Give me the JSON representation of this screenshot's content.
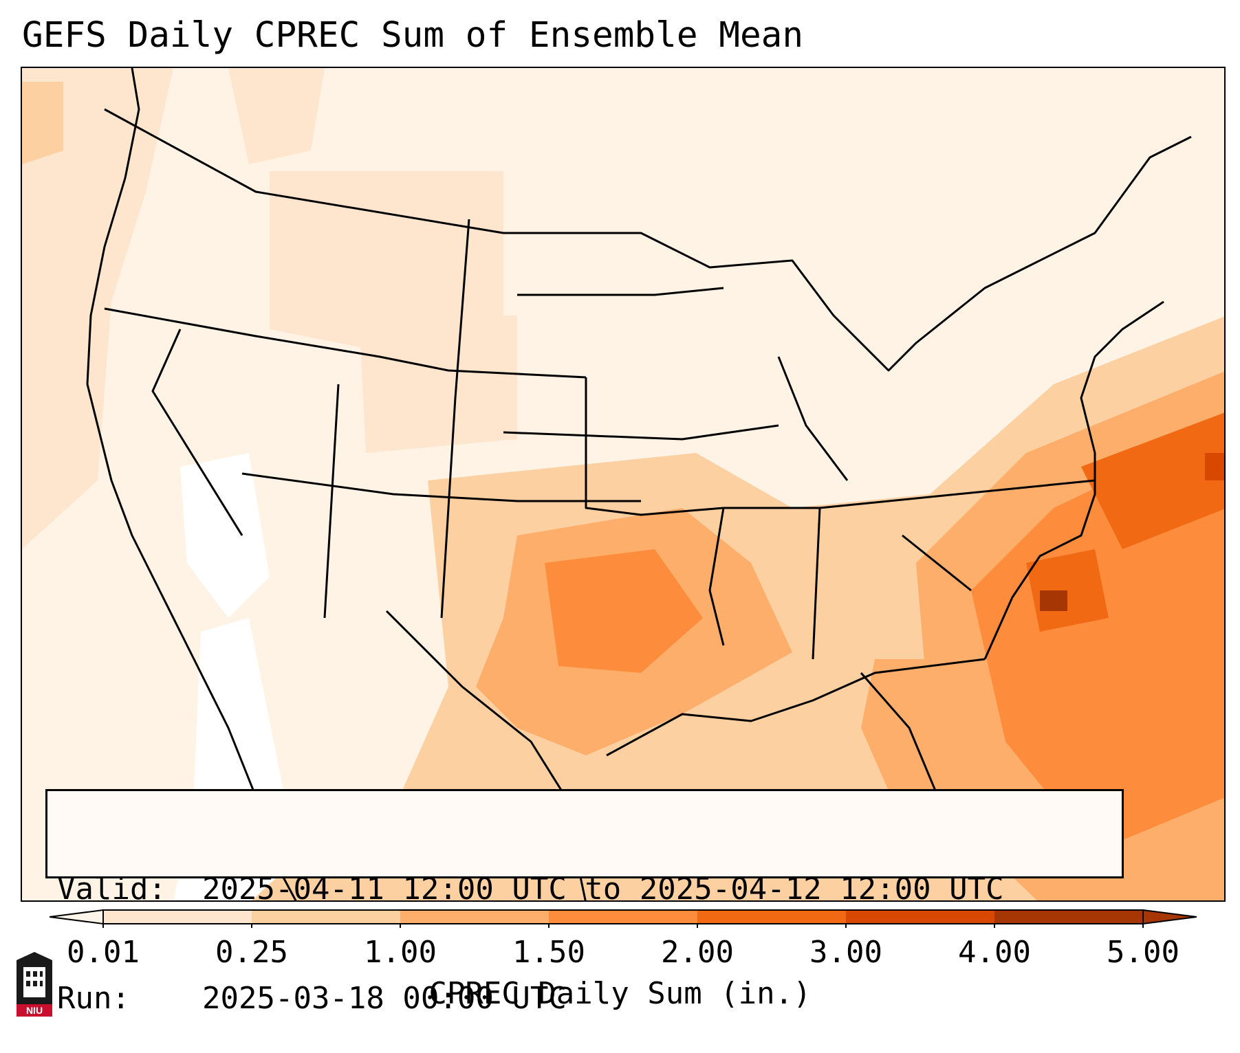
{
  "title": "GEFS Daily CPREC Sum of Ensemble Mean",
  "info": {
    "valid_key": "Valid:",
    "valid_value": "2025-04-11 12:00 UTC to 2025-04-12 12:00 UTC",
    "run_key": "Run:",
    "run_value": "2025-03-18 00:00 UTC"
  },
  "colorbar": {
    "label": "CPREC Daily Sum (in.)",
    "ticks": [
      "0.01",
      "0.25",
      "1.00",
      "1.50",
      "2.00",
      "3.00",
      "4.00",
      "5.00"
    ],
    "colors": [
      "#fff5eb",
      "#fee6ce",
      "#fdd0a2",
      "#fdae6b",
      "#fd8d3c",
      "#f16913",
      "#d94801",
      "#a63603"
    ],
    "extend": "both"
  },
  "logo": {
    "text": "NIU",
    "color": "#c8102e"
  }
}
